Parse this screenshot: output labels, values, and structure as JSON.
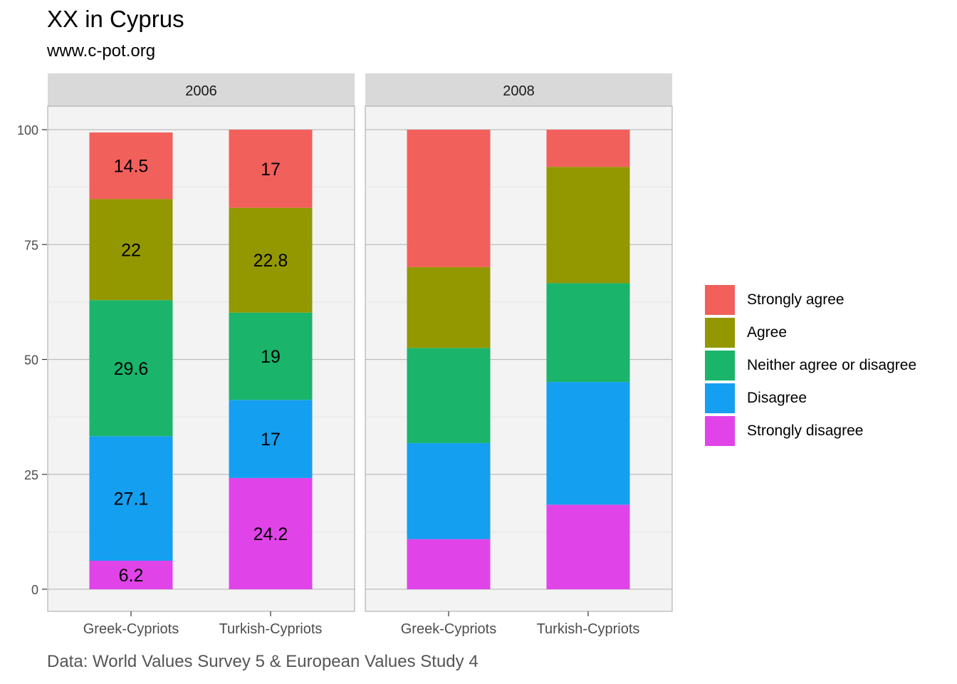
{
  "title": "XX in Cyprus",
  "subtitle": "www.c-pot.org",
  "caption": "Data: World Values Survey 5 & European Values Study 4",
  "chart_data": {
    "type": "bar",
    "stacked": true,
    "facets": [
      "2006",
      "2008"
    ],
    "categories": [
      "Greek-Cypriots",
      "Turkish-Cypriots"
    ],
    "ylim": [
      0,
      100
    ],
    "yticks": [
      "0",
      "25",
      "50",
      "75",
      "100"
    ],
    "grid": true,
    "legend_position": "right",
    "series": [
      {
        "name": "Strongly disagree",
        "color": "#E044E8",
        "values": {
          "2006": [
            6.2,
            24.2
          ],
          "2008": [
            10.9,
            18.4
          ]
        },
        "labels": {
          "2006": [
            "6.2",
            "24.2"
          ],
          "2008": [
            "",
            ""
          ]
        }
      },
      {
        "name": "Disagree",
        "color": "#159FF0",
        "values": {
          "2006": [
            27.1,
            17
          ],
          "2008": [
            20.9,
            26.7
          ]
        },
        "labels": {
          "2006": [
            "27.1",
            "17"
          ],
          "2008": [
            "",
            ""
          ]
        }
      },
      {
        "name": "Neither agree or disagree",
        "color": "#1AB46B",
        "values": {
          "2006": [
            29.6,
            19
          ],
          "2008": [
            20.7,
            21.5
          ]
        },
        "labels": {
          "2006": [
            "29.6",
            "19"
          ],
          "2008": [
            "",
            ""
          ]
        }
      },
      {
        "name": "Agree",
        "color": "#939800",
        "values": {
          "2006": [
            22,
            22.8
          ],
          "2008": [
            17.6,
            25.3
          ]
        },
        "labels": {
          "2006": [
            "22",
            "22.8"
          ],
          "2008": [
            "",
            ""
          ]
        }
      },
      {
        "name": "Strongly agree",
        "color": "#F2605C",
        "values": {
          "2006": [
            14.5,
            17
          ],
          "2008": [
            29.9,
            8.1
          ]
        },
        "labels": {
          "2006": [
            "14.5",
            "17"
          ],
          "2008": [
            "",
            ""
          ]
        }
      }
    ]
  }
}
